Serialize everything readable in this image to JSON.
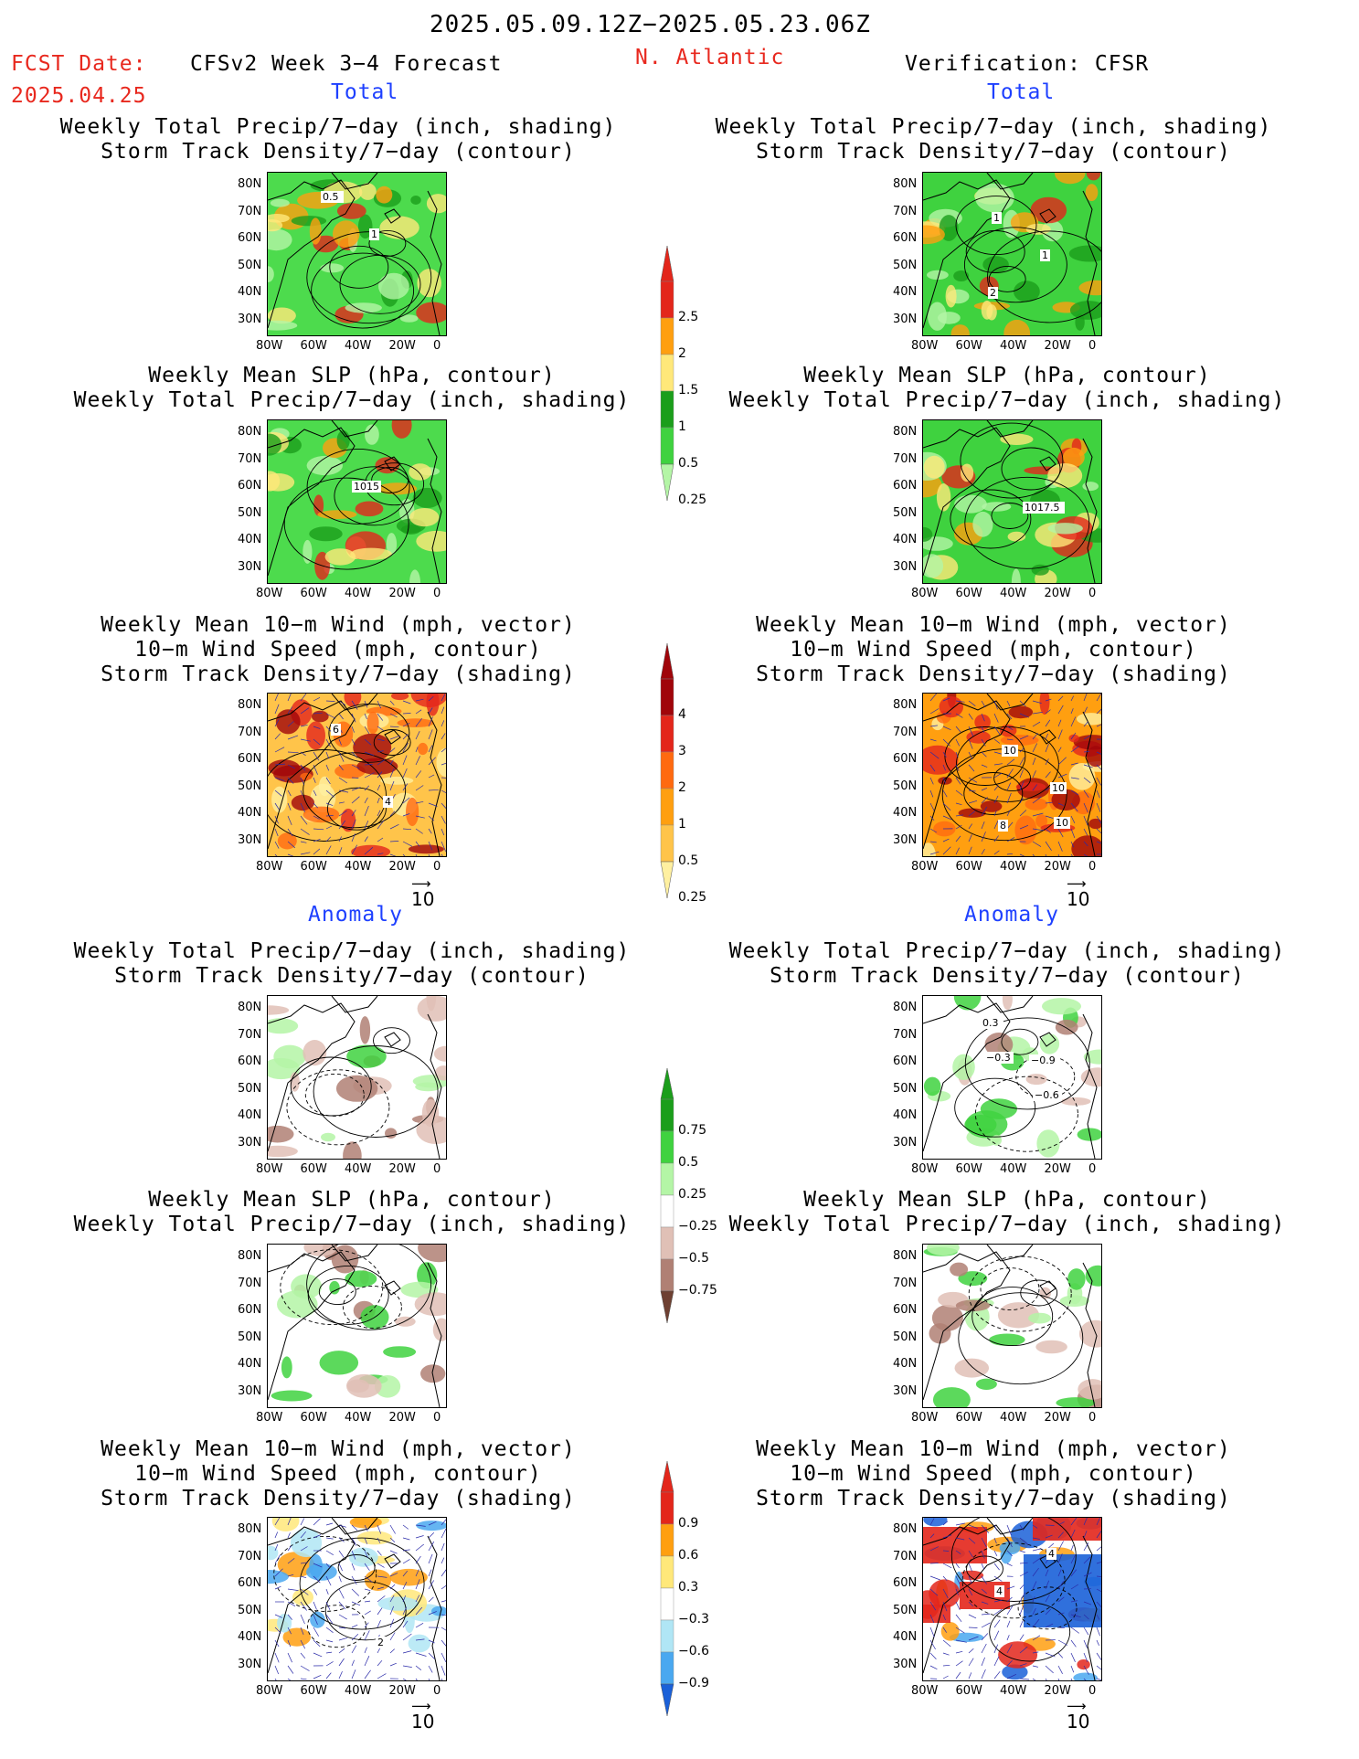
{
  "header": {
    "period": "2025.05.09.12Z−2025.05.23.06Z",
    "fcst_label": "FCST Date:",
    "fcst_date": "2025.04.25",
    "product": "CFSv2 Week 3−4 Forecast",
    "region": "N. Atlantic",
    "verification": "Verification: CFSR"
  },
  "sections": {
    "total": "Total",
    "anomaly": "Anomaly"
  },
  "titles": {
    "precip_storm": [
      "Weekly Total Precip/7−day (inch, shading)",
      "Storm Track Density/7−day (contour)"
    ],
    "slp_precip": [
      "Weekly Mean SLP (hPa, contour)",
      "Weekly Total Precip/7−day (inch, shading)"
    ],
    "wind_storm": [
      "Weekly Mean 10−m Wind (mph, vector)",
      "10−m Wind Speed (mph, contour)",
      "Storm Track Density/7−day (shading)"
    ]
  },
  "axes": {
    "y_ticks": [
      "80N",
      "70N",
      "60N",
      "50N",
      "40N",
      "30N"
    ],
    "x_ticks": [
      "80W",
      "60W",
      "40W",
      "20W",
      "0"
    ]
  },
  "vector_ref": "10",
  "panel_labels": {
    "fc_total_precip": [
      "0.5",
      "1"
    ],
    "obs_total_precip": [
      "1",
      "1",
      "2"
    ],
    "fc_total_slp": [
      "1015"
    ],
    "obs_total_slp": [
      "1017.5"
    ],
    "fc_total_wind": [
      "4",
      "6"
    ],
    "obs_total_wind": [
      "10",
      "10",
      "10",
      "8"
    ],
    "obs_anom_precip": [
      "−0.3",
      "−0.6",
      "0.3",
      "−0.9"
    ],
    "fc_anom_wind": [
      "2"
    ],
    "obs_anom_wind": [
      "4",
      "4"
    ]
  },
  "colorbars": {
    "precip_total": {
      "labels": [
        "2.5",
        "2",
        "1.5",
        "1",
        "0.5",
        "0.25"
      ],
      "colors": [
        "#e3261b",
        "#ff9f10",
        "#ffe87a",
        "#1b9e1b",
        "#3fd23f",
        "#b4f5a6"
      ]
    },
    "storm_total": {
      "labels": [
        "4",
        "3",
        "2",
        "1",
        "0.5",
        "0.25"
      ],
      "colors": [
        "#a0050a",
        "#e3261b",
        "#ff6a10",
        "#ff9f10",
        "#ffc44a",
        "#fff0a0"
      ]
    },
    "precip_anom": {
      "labels": [
        "0.75",
        "0.5",
        "0.25",
        "−0.25",
        "−0.5",
        "−0.75"
      ],
      "colors": [
        "#1b9e1b",
        "#3fd23f",
        "#b4f5a6",
        "#ffffff",
        "#e0c0b6",
        "#b08074",
        "#6e4032"
      ]
    },
    "storm_anom": {
      "labels": [
        "0.9",
        "0.6",
        "0.3",
        "−0.3",
        "−0.6",
        "−0.9"
      ],
      "colors": [
        "#e3261b",
        "#ff9f10",
        "#ffe87a",
        "#ffffff",
        "#b0e6f5",
        "#4aa8f0",
        "#1a60d8"
      ]
    }
  }
}
